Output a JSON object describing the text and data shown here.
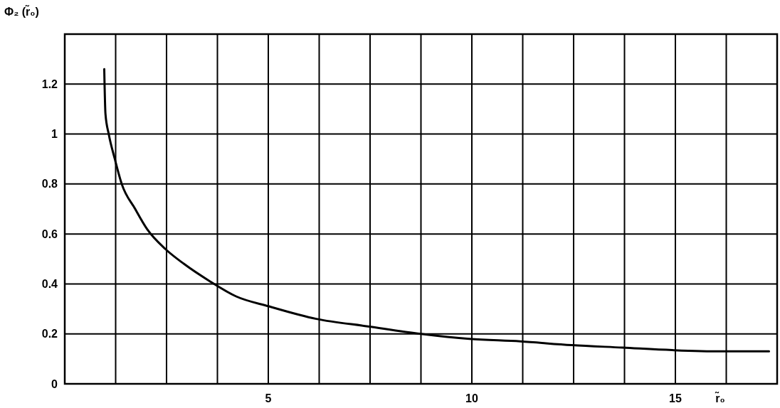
{
  "chart_data": {
    "type": "line",
    "xlabel": "r̃₀",
    "ylabel": "Φ₂ (r̃₀)",
    "x": [
      0.97,
      1.0,
      1.08,
      1.23,
      1.4,
      1.73,
      2.02,
      2.47,
      2.93,
      3.57,
      4.21,
      5.02,
      6.18,
      7.45,
      8.75,
      9.94,
      11.19,
      12.45,
      13.7,
      14.92,
      16.11,
      17.3
    ],
    "values": [
      1.26,
      1.08,
      1.0,
      0.9,
      0.8,
      0.7,
      0.62,
      0.54,
      0.48,
      0.41,
      0.35,
      0.31,
      0.26,
      0.23,
      0.2,
      0.18,
      0.17,
      0.155,
      0.145,
      0.135,
      0.13,
      0.13
    ],
    "color": "#000000",
    "xlim": [
      0,
      17.5
    ],
    "ylim": [
      0,
      1.4
    ],
    "xticks": [
      {
        "value": 1.25,
        "label": null
      },
      {
        "value": 2.5,
        "label": null
      },
      {
        "value": 3.75,
        "label": null
      },
      5,
      {
        "value": 6.25,
        "label": null
      },
      {
        "value": 7.5,
        "label": null
      },
      {
        "value": 8.75,
        "label": null
      },
      10,
      {
        "value": 11.25,
        "label": null
      },
      {
        "value": 12.5,
        "label": null
      },
      {
        "value": 13.75,
        "label": null
      },
      15,
      {
        "value": 16.25,
        "label": null
      }
    ],
    "yticks": [
      0,
      0.2,
      0.4,
      0.6,
      0.8,
      1,
      1.2,
      {
        "value": 1.4,
        "label": null
      }
    ],
    "grid": true
  }
}
